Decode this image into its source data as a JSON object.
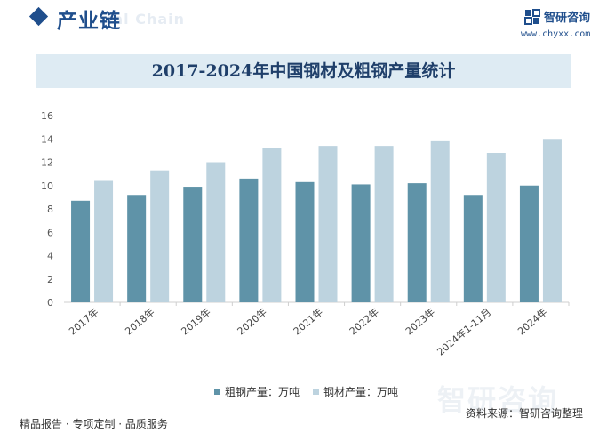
{
  "header": {
    "title": "产业链",
    "watermark": "rial Chain",
    "brand_name": "智研咨询",
    "brand_url": "www.chyxx.com"
  },
  "colors": {
    "brand": "#1f4e8c",
    "series_crude_steel": "#5f93a8",
    "series_steel_products": "#bdd3df",
    "banner": "#deebf3"
  },
  "chart_data": {
    "type": "bar",
    "title": "2017-2024年中国钢材及粗钢产量统计",
    "categories": [
      "2017年",
      "2018年",
      "2019年",
      "2020年",
      "2021年",
      "2022年",
      "2023年",
      "2024年1-11月",
      "2024年"
    ],
    "series": [
      {
        "name": "粗钢产量：万吨",
        "color": "#5f93a8",
        "values": [
          8.7,
          9.2,
          9.9,
          10.6,
          10.3,
          10.1,
          10.2,
          9.2,
          10.0
        ]
      },
      {
        "name": "钢材产量：万吨",
        "color": "#bdd3df",
        "values": [
          10.4,
          11.3,
          12.0,
          13.2,
          13.4,
          13.4,
          13.8,
          12.8,
          14.0
        ]
      }
    ],
    "yticks": [
      0,
      2,
      4,
      6,
      8,
      10,
      12,
      14,
      16
    ],
    "ylim": [
      0,
      16
    ],
    "grid": false,
    "legend_position": "bottom"
  },
  "footer": {
    "left_text": "精品报告 · 专项定制 · 品质服务",
    "source_text": "资料来源：智研咨询整理",
    "background_brand": "智研咨询"
  }
}
